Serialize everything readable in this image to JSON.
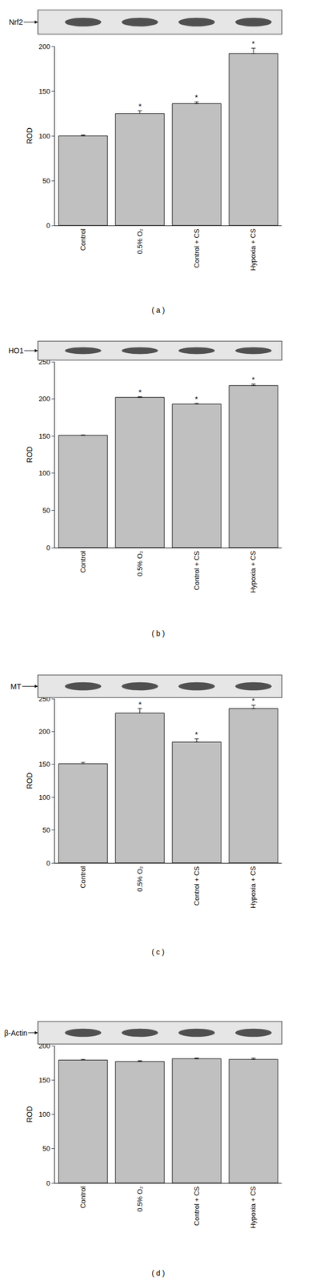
{
  "chart_data": [
    {
      "type": "bar",
      "blot_label": "Nrf2",
      "panel_label": "( a )",
      "y_label": "ROD",
      "categories": [
        "Control",
        "0.5% O₂",
        "Control + CS",
        "Hypoxia + CS"
      ],
      "values": [
        100,
        125,
        136,
        192
      ],
      "errors": [
        1,
        3,
        2,
        6
      ],
      "color": "#c0c0c0",
      "ylim": [
        0,
        200
      ],
      "yticks": [
        0,
        50,
        100,
        150,
        200
      ],
      "annotations": [
        {
          "category": "0.5% O₂",
          "text": "*"
        },
        {
          "category": "Control + CS",
          "text": "*"
        },
        {
          "category": "Hypoxia + CS",
          "text": "*"
        }
      ]
    },
    {
      "type": "bar",
      "blot_label": "HO1",
      "panel_label": "( b )",
      "y_label": "ROD",
      "categories": [
        "Control",
        "0.5% O₂",
        "Control + CS",
        "Hypoxia + CS"
      ],
      "values": [
        151,
        202,
        193,
        218
      ],
      "errors": [
        0.5,
        1,
        1,
        2
      ],
      "color": "#c0c0c0",
      "ylim": [
        0,
        250
      ],
      "yticks": [
        0,
        50,
        100,
        150,
        200,
        250
      ],
      "annotations": [
        {
          "category": "0.5% O₂",
          "text": "*"
        },
        {
          "category": "Control + CS",
          "text": "*"
        },
        {
          "category": "Hypoxia + CS",
          "text": "*"
        }
      ]
    },
    {
      "type": "bar",
      "blot_label": "MT",
      "panel_label": "( c )",
      "y_label": "ROD",
      "categories": [
        "Control",
        "0.5% O₂",
        "Control + CS",
        "Hypoxia + CS"
      ],
      "values": [
        151,
        228,
        184,
        235
      ],
      "errors": [
        2,
        7,
        5,
        5
      ],
      "color": "#c0c0c0",
      "ylim": [
        0,
        250
      ],
      "yticks": [
        0,
        50,
        100,
        150,
        200,
        250
      ],
      "annotations": [
        {
          "category": "0.5% O₂",
          "text": "*"
        },
        {
          "category": "Control + CS",
          "text": "*"
        },
        {
          "category": "Hypoxia + CS",
          "text": "*"
        }
      ]
    },
    {
      "type": "bar",
      "blot_label": "β-Actin",
      "panel_label": "( d )",
      "y_label": "ROD",
      "categories": [
        "Control",
        "0.5% O₂",
        "Control + CS",
        "Hypoxia + CS"
      ],
      "values": [
        179,
        177,
        181,
        180
      ],
      "errors": [
        1,
        1,
        1,
        2
      ],
      "color": "#c0c0c0",
      "ylim": [
        0,
        200
      ],
      "yticks": [
        0,
        50,
        100,
        150,
        200
      ],
      "annotations": []
    }
  ]
}
